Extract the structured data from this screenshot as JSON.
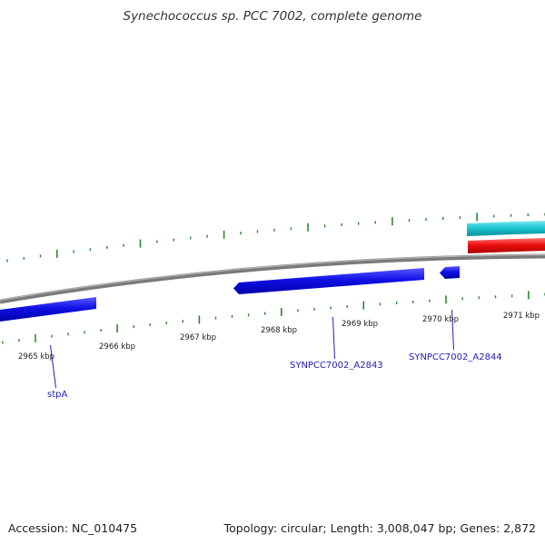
{
  "title": "Synechococcus sp. PCC 7002, complete genome",
  "footer": {
    "accession": "Accession: NC_010475",
    "summary": "Topology: circular; Length: 3,008,047 bp; Genes: 2,872"
  },
  "colors": {
    "backbone": "#8a8a8a",
    "gene_forward": "#1010e6",
    "feature_teal": "#1ec8d2",
    "feature_red": "#ee1010",
    "tick": "#2a8a2a",
    "gene_label": "#2020b0",
    "leader": "#2020b0"
  },
  "tick_labels": [
    {
      "text": "2965 kbp"
    },
    {
      "text": "2966 kbp"
    },
    {
      "text": "2967 kbp"
    },
    {
      "text": "2968 kbp"
    },
    {
      "text": "2969 kbp"
    },
    {
      "text": "2970 kbp"
    },
    {
      "text": "2971 kbp"
    }
  ],
  "gene_labels": [
    {
      "text": "stpA"
    },
    {
      "text": "SYNPCC7002_A2843"
    },
    {
      "text": "SYNPCC7002_A2844"
    }
  ]
}
